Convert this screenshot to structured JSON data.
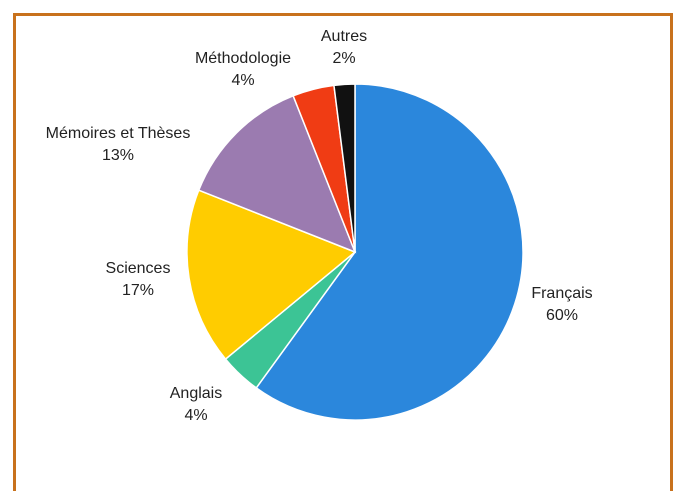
{
  "chart_data": {
    "type": "pie",
    "categories": [
      "Français",
      "Anglais",
      "Sciences",
      "Mémoires et Thèses",
      "Méthodologie",
      "Autres"
    ],
    "values": [
      60,
      4,
      17,
      13,
      4,
      2
    ],
    "value_labels": [
      "60%",
      "4%",
      "17%",
      "13%",
      "4%",
      "2%"
    ],
    "colors": [
      "#2b87dc",
      "#3cc495",
      "#ffcc00",
      "#9b7bb0",
      "#f03c14",
      "#111111"
    ]
  }
}
